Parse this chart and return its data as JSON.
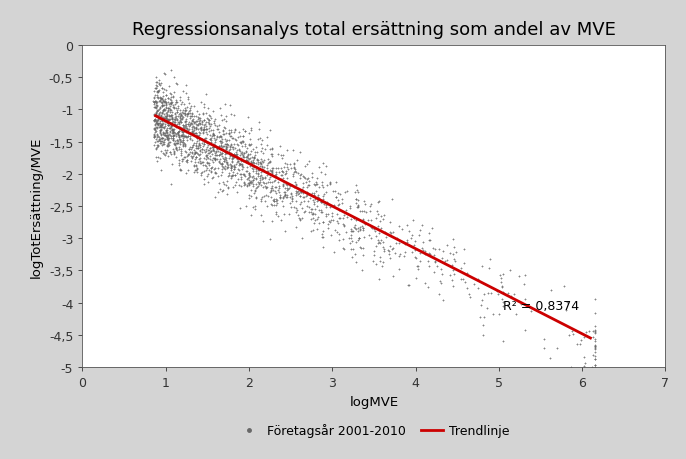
{
  "title": "Regressionsanalys total ersättning som andel av MVE",
  "xlabel": "logMVE",
  "ylabel": "logTotErsättning/MVE",
  "xlim": [
    0,
    7
  ],
  "ylim": [
    -5,
    0
  ],
  "xticks": [
    0,
    1,
    2,
    3,
    4,
    5,
    6,
    7
  ],
  "yticks": [
    0,
    -0.5,
    -1,
    -1.5,
    -2,
    -2.5,
    -3,
    -3.5,
    -4,
    -4.5,
    -5
  ],
  "ytick_labels": [
    "0",
    "-0,5",
    "-1",
    "-1,5",
    "-2",
    "-2,5",
    "-3",
    "-3,5",
    "-4",
    "-4,5",
    "-5"
  ],
  "trendline_x": [
    0.88,
    6.1
  ],
  "trendline_y": [
    -1.1,
    -4.55
  ],
  "r2_text": "R² = 0,8374",
  "r2_x": 5.05,
  "r2_y": -4.1,
  "n_points": 2095,
  "scatter_color": "#686868",
  "trendline_color": "#cc0000",
  "background_color": "#d4d4d4",
  "plot_bg_color": "#ffffff",
  "legend_dot_label": "Företagsår 2001-2010",
  "legend_line_label": "Trendlinje",
  "title_fontsize": 13,
  "axis_label_fontsize": 9.5,
  "tick_fontsize": 9,
  "seed": 42,
  "scatter_slope": -0.674,
  "scatter_intercept": -0.52,
  "scatter_std": 0.28
}
